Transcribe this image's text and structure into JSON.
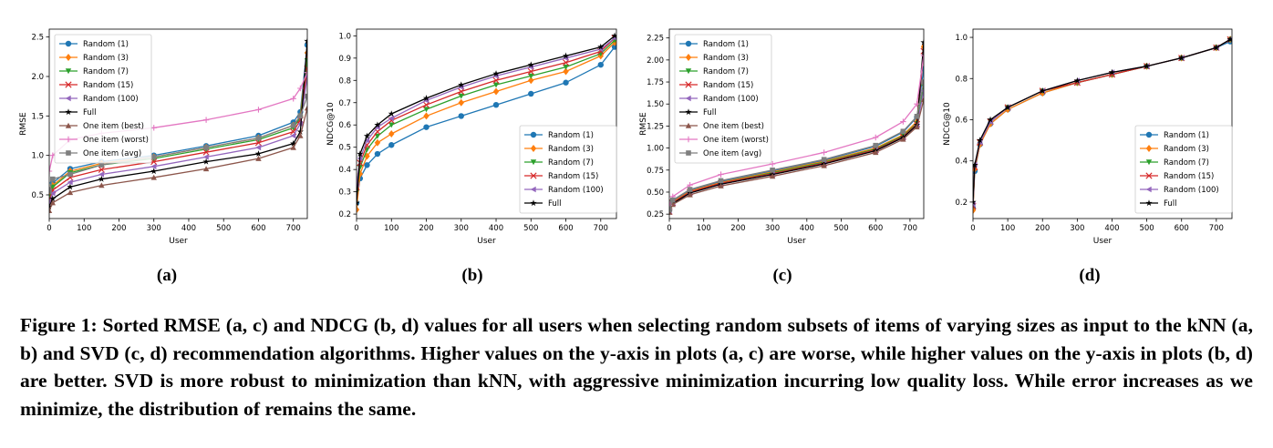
{
  "figure": {
    "caption": "Figure 1: Sorted RMSE (a, c) and NDCG (b, d) values for all users when selecting random subsets of items of varying sizes as input to the kNN (a, b) and SVD (c, d) recommendation algorithms. Higher values on the y-axis in plots (a, c) are worse, while higher values on the y-axis in plots (b, d) are better. SVD is more robust to minimization than kNN, with aggressive minimization incurring low quality loss. While error increases as we minimize, the distribution of remains the same.",
    "series_colors": {
      "Random (1)": "#1f77b4",
      "Random (3)": "#ff7f0e",
      "Random (7)": "#2ca02c",
      "Random (15)": "#d62728",
      "Random (100)": "#9467bd",
      "Full": "#000000",
      "One item (best)": "#8c564b",
      "One item (worst)": "#e377c2",
      "One item (avg)": "#7f7f7f"
    },
    "series_markers": {
      "Random (1)": "circle",
      "Random (3)": "diamond",
      "Random (7)": "triangle-down",
      "Random (15)": "x",
      "Random (100)": "triangle-left",
      "Full": "star",
      "One item (best)": "triangle-up",
      "One item (worst)": "plus",
      "One item (avg)": "square"
    }
  },
  "chart_data": [
    {
      "id": "a",
      "panel_label": "(a)",
      "type": "line",
      "xlabel": "User",
      "ylabel": "RMSE",
      "xlim": [
        0,
        740
      ],
      "ylim": [
        0.2,
        2.6
      ],
      "xticks": [
        0,
        100,
        200,
        300,
        400,
        500,
        600,
        700
      ],
      "yticks": [
        0.5,
        1.0,
        1.5,
        2.0,
        2.5
      ],
      "ytick_labels": [
        "0.5",
        "1.0",
        "1.5",
        "2.0",
        "2.5"
      ],
      "legend": "upper-left",
      "series": [
        {
          "name": "Random (1)",
          "x": [
            0,
            10,
            60,
            150,
            300,
            450,
            600,
            700,
            720,
            740
          ],
          "values": [
            0.5,
            0.65,
            0.83,
            0.92,
            1.0,
            1.12,
            1.25,
            1.42,
            1.55,
            2.4
          ]
        },
        {
          "name": "Random (3)",
          "x": [
            0,
            10,
            60,
            150,
            300,
            450,
            600,
            700,
            720,
            740
          ],
          "values": [
            0.48,
            0.62,
            0.8,
            0.9,
            0.98,
            1.1,
            1.22,
            1.38,
            1.5,
            2.3
          ]
        },
        {
          "name": "Random (7)",
          "x": [
            0,
            10,
            60,
            150,
            300,
            450,
            600,
            700,
            720,
            740
          ],
          "values": [
            0.45,
            0.6,
            0.78,
            0.88,
            0.96,
            1.08,
            1.2,
            1.35,
            1.48,
            2.2
          ]
        },
        {
          "name": "Random (15)",
          "x": [
            0,
            10,
            60,
            150,
            300,
            450,
            600,
            700,
            720,
            740
          ],
          "values": [
            0.42,
            0.56,
            0.72,
            0.82,
            0.92,
            1.04,
            1.16,
            1.3,
            1.45,
            2.1
          ]
        },
        {
          "name": "Random (100)",
          "x": [
            0,
            10,
            60,
            150,
            300,
            450,
            600,
            700,
            720,
            740
          ],
          "values": [
            0.4,
            0.52,
            0.66,
            0.76,
            0.86,
            0.98,
            1.1,
            1.25,
            1.4,
            2.0
          ]
        },
        {
          "name": "Full",
          "x": [
            0,
            10,
            60,
            150,
            300,
            450,
            600,
            700,
            720,
            740
          ],
          "values": [
            0.35,
            0.45,
            0.6,
            0.7,
            0.8,
            0.92,
            1.02,
            1.15,
            1.3,
            2.45
          ]
        },
        {
          "name": "One item (best)",
          "x": [
            0,
            10,
            60,
            150,
            300,
            450,
            600,
            700,
            720,
            740
          ],
          "values": [
            0.3,
            0.4,
            0.53,
            0.62,
            0.72,
            0.83,
            0.96,
            1.1,
            1.25,
            1.6
          ]
        },
        {
          "name": "One item (worst)",
          "x": [
            0,
            10,
            60,
            150,
            300,
            450,
            600,
            700,
            720,
            740
          ],
          "values": [
            0.8,
            1.0,
            1.2,
            1.28,
            1.35,
            1.45,
            1.58,
            1.72,
            1.85,
            2.05
          ]
        },
        {
          "name": "One item (avg)",
          "x": [
            0,
            10,
            60,
            150,
            300,
            450,
            600,
            700,
            720,
            740
          ],
          "values": [
            0.55,
            0.7,
            0.76,
            0.88,
            0.98,
            1.1,
            1.22,
            1.38,
            1.5,
            1.75
          ]
        }
      ]
    },
    {
      "id": "b",
      "panel_label": "(b)",
      "type": "line",
      "xlabel": "User",
      "ylabel": "NDCG@10",
      "xlim": [
        0,
        745
      ],
      "ylim": [
        0.18,
        1.03
      ],
      "xticks": [
        0,
        100,
        200,
        300,
        400,
        500,
        600,
        700
      ],
      "yticks": [
        0.2,
        0.3,
        0.4,
        0.5,
        0.6,
        0.7,
        0.8,
        0.9,
        1.0
      ],
      "ytick_labels": [
        "0.2",
        "0.3",
        "0.4",
        "0.5",
        "0.6",
        "0.7",
        "0.8",
        "0.9",
        "1.0"
      ],
      "legend": "lower-right",
      "series": [
        {
          "name": "Random (1)",
          "x": [
            0,
            10,
            30,
            60,
            100,
            200,
            300,
            400,
            500,
            600,
            700,
            740
          ],
          "values": [
            0.25,
            0.36,
            0.42,
            0.47,
            0.51,
            0.59,
            0.64,
            0.69,
            0.74,
            0.79,
            0.87,
            0.95
          ]
        },
        {
          "name": "Random (3)",
          "x": [
            0,
            10,
            30,
            60,
            100,
            200,
            300,
            400,
            500,
            600,
            700,
            740
          ],
          "values": [
            0.22,
            0.38,
            0.46,
            0.52,
            0.56,
            0.64,
            0.7,
            0.75,
            0.8,
            0.84,
            0.91,
            0.97
          ]
        },
        {
          "name": "Random (7)",
          "x": [
            0,
            10,
            30,
            60,
            100,
            200,
            300,
            400,
            500,
            600,
            700,
            740
          ],
          "values": [
            0.3,
            0.41,
            0.49,
            0.55,
            0.6,
            0.67,
            0.73,
            0.78,
            0.82,
            0.86,
            0.92,
            0.98
          ]
        },
        {
          "name": "Random (15)",
          "x": [
            0,
            10,
            30,
            60,
            100,
            200,
            300,
            400,
            500,
            600,
            700,
            740
          ],
          "values": [
            0.32,
            0.43,
            0.51,
            0.57,
            0.62,
            0.69,
            0.75,
            0.8,
            0.84,
            0.88,
            0.93,
            0.99
          ]
        },
        {
          "name": "Random (100)",
          "x": [
            0,
            10,
            30,
            60,
            100,
            200,
            300,
            400,
            500,
            600,
            700,
            740
          ],
          "values": [
            0.33,
            0.45,
            0.53,
            0.59,
            0.63,
            0.71,
            0.77,
            0.82,
            0.86,
            0.9,
            0.94,
            0.99
          ]
        },
        {
          "name": "Full",
          "x": [
            0,
            10,
            30,
            60,
            100,
            200,
            300,
            400,
            500,
            600,
            700,
            740
          ],
          "values": [
            0.25,
            0.47,
            0.55,
            0.6,
            0.65,
            0.72,
            0.78,
            0.83,
            0.87,
            0.91,
            0.95,
            1.0
          ]
        }
      ]
    },
    {
      "id": "c",
      "panel_label": "(c)",
      "type": "line",
      "xlabel": "User",
      "ylabel": "RMSE",
      "xlim": [
        0,
        740
      ],
      "ylim": [
        0.2,
        2.35
      ],
      "xticks": [
        0,
        100,
        200,
        300,
        400,
        500,
        600,
        700
      ],
      "yticks": [
        0.25,
        0.5,
        0.75,
        1.0,
        1.25,
        1.5,
        1.75,
        2.0,
        2.25
      ],
      "ytick_labels": [
        "0.25",
        "0.50",
        "0.75",
        "1.00",
        "1.25",
        "1.50",
        "1.75",
        "2.00",
        "2.25"
      ],
      "legend": "upper-left",
      "series": [
        {
          "name": "Random (1)",
          "x": [
            0,
            10,
            60,
            150,
            300,
            450,
            600,
            680,
            720,
            740
          ],
          "values": [
            0.3,
            0.4,
            0.52,
            0.62,
            0.74,
            0.86,
            1.02,
            1.18,
            1.35,
            1.9
          ]
        },
        {
          "name": "Random (3)",
          "x": [
            0,
            10,
            60,
            150,
            300,
            450,
            600,
            680,
            720,
            740
          ],
          "values": [
            0.29,
            0.39,
            0.51,
            0.61,
            0.73,
            0.85,
            1.0,
            1.15,
            1.3,
            2.15
          ]
        },
        {
          "name": "Random (7)",
          "x": [
            0,
            10,
            60,
            150,
            300,
            450,
            600,
            680,
            720,
            740
          ],
          "values": [
            0.29,
            0.38,
            0.5,
            0.6,
            0.72,
            0.84,
            0.99,
            1.14,
            1.28,
            1.7
          ]
        },
        {
          "name": "Random (15)",
          "x": [
            0,
            10,
            60,
            150,
            300,
            450,
            600,
            680,
            720,
            740
          ],
          "values": [
            0.28,
            0.38,
            0.5,
            0.6,
            0.71,
            0.83,
            0.98,
            1.13,
            1.27,
            2.1
          ]
        },
        {
          "name": "Random (100)",
          "x": [
            0,
            10,
            60,
            150,
            300,
            450,
            600,
            680,
            720,
            740
          ],
          "values": [
            0.28,
            0.37,
            0.49,
            0.59,
            0.7,
            0.82,
            0.97,
            1.12,
            1.26,
            1.65
          ]
        },
        {
          "name": "Full",
          "x": [
            0,
            10,
            60,
            150,
            300,
            450,
            600,
            680,
            720,
            740
          ],
          "values": [
            0.28,
            0.37,
            0.49,
            0.59,
            0.7,
            0.82,
            0.97,
            1.12,
            1.26,
            2.2
          ]
        },
        {
          "name": "One item (best)",
          "x": [
            0,
            10,
            60,
            150,
            300,
            450,
            600,
            680,
            720,
            740
          ],
          "values": [
            0.27,
            0.36,
            0.47,
            0.57,
            0.68,
            0.8,
            0.95,
            1.1,
            1.24,
            1.55
          ]
        },
        {
          "name": "One item (worst)",
          "x": [
            0,
            10,
            60,
            150,
            300,
            450,
            600,
            680,
            720,
            740
          ],
          "values": [
            0.35,
            0.45,
            0.58,
            0.7,
            0.82,
            0.95,
            1.12,
            1.3,
            1.5,
            2.05
          ]
        },
        {
          "name": "One item (avg)",
          "x": [
            0,
            10,
            60,
            150,
            300,
            450,
            600,
            680,
            720,
            740
          ],
          "values": [
            0.3,
            0.41,
            0.53,
            0.63,
            0.75,
            0.87,
            1.03,
            1.19,
            1.36,
            1.75
          ]
        }
      ]
    },
    {
      "id": "d",
      "panel_label": "(d)",
      "type": "line",
      "xlabel": "User",
      "ylabel": "NDCG@10",
      "xlim": [
        0,
        745
      ],
      "ylim": [
        0.12,
        1.04
      ],
      "xticks": [
        0,
        100,
        200,
        300,
        400,
        500,
        600,
        700
      ],
      "yticks": [
        0.2,
        0.4,
        0.6,
        0.8,
        1.0
      ],
      "ytick_labels": [
        "0.2",
        "0.4",
        "0.6",
        "0.8",
        "1.0"
      ],
      "legend": "lower-right",
      "series": [
        {
          "name": "Random (1)",
          "x": [
            0,
            5,
            20,
            50,
            100,
            200,
            300,
            400,
            500,
            600,
            700,
            740
          ],
          "values": [
            0.17,
            0.35,
            0.48,
            0.58,
            0.65,
            0.73,
            0.78,
            0.82,
            0.86,
            0.9,
            0.95,
            0.98
          ]
        },
        {
          "name": "Random (3)",
          "x": [
            0,
            5,
            20,
            50,
            100,
            200,
            300,
            400,
            500,
            600,
            700,
            740
          ],
          "values": [
            0.16,
            0.36,
            0.48,
            0.58,
            0.65,
            0.73,
            0.78,
            0.82,
            0.86,
            0.9,
            0.95,
            0.99
          ]
        },
        {
          "name": "Random (7)",
          "x": [
            0,
            5,
            20,
            50,
            100,
            200,
            300,
            400,
            500,
            600,
            700,
            740
          ],
          "values": [
            0.18,
            0.37,
            0.49,
            0.59,
            0.66,
            0.74,
            0.78,
            0.82,
            0.86,
            0.9,
            0.95,
            0.99
          ]
        },
        {
          "name": "Random (15)",
          "x": [
            0,
            5,
            20,
            50,
            100,
            200,
            300,
            400,
            500,
            600,
            700,
            740
          ],
          "values": [
            0.18,
            0.37,
            0.49,
            0.59,
            0.66,
            0.74,
            0.78,
            0.82,
            0.86,
            0.9,
            0.95,
            0.99
          ]
        },
        {
          "name": "Random (100)",
          "x": [
            0,
            5,
            20,
            50,
            100,
            200,
            300,
            400,
            500,
            600,
            700,
            740
          ],
          "values": [
            0.19,
            0.38,
            0.49,
            0.59,
            0.66,
            0.74,
            0.79,
            0.83,
            0.86,
            0.9,
            0.95,
            0.99
          ]
        },
        {
          "name": "Full",
          "x": [
            0,
            5,
            20,
            50,
            100,
            200,
            300,
            400,
            500,
            600,
            700,
            740
          ],
          "values": [
            0.2,
            0.38,
            0.5,
            0.6,
            0.66,
            0.74,
            0.79,
            0.83,
            0.86,
            0.9,
            0.95,
            0.99
          ]
        }
      ]
    }
  ]
}
